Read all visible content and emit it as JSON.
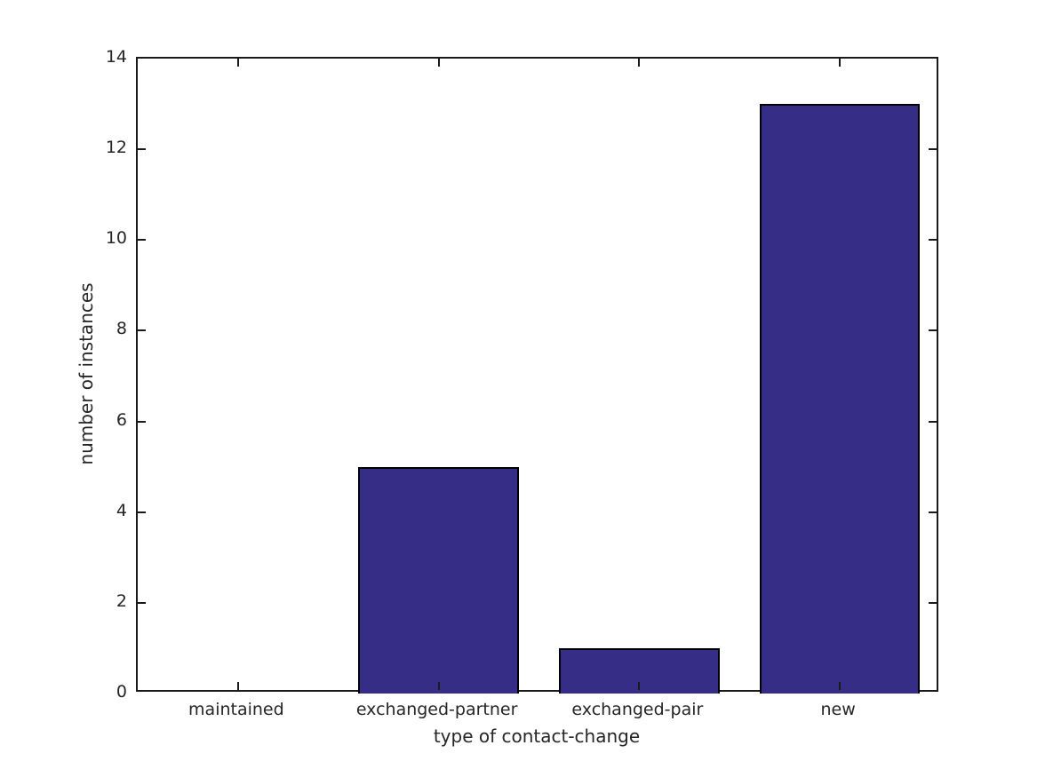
{
  "chart_data": {
    "type": "bar",
    "categories": [
      "maintained",
      "exchanged-partner",
      "exchanged-pair",
      "new"
    ],
    "values": [
      0,
      5,
      1,
      13
    ],
    "title": "",
    "xlabel": "type of contact-change",
    "ylabel": "number of instances",
    "ylim": [
      0,
      14
    ],
    "yticks": [
      0,
      2,
      4,
      6,
      8,
      10,
      12,
      14
    ],
    "bar_width_fraction": 0.8,
    "grid": false,
    "legend": null,
    "colors": {
      "bar_fill": "#352D86",
      "bar_edge": "#000000",
      "axis": "#1a1a1a",
      "text": "#262626",
      "background": "#FFFFFF"
    }
  }
}
